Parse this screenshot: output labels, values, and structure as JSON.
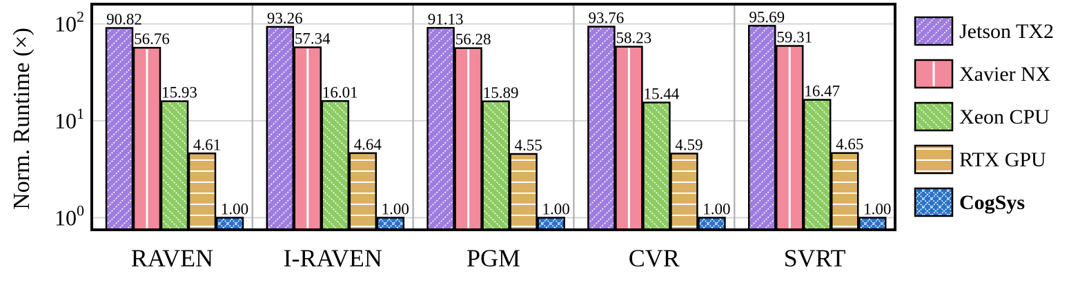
{
  "chart_data": {
    "type": "bar",
    "scale": "log",
    "xlabel": "",
    "ylabel": "Norm. Runtime (×)",
    "ylim": [
      0.75,
      160
    ],
    "y_ticks": [
      {
        "value": 1,
        "base": "10",
        "exp": "0"
      },
      {
        "value": 10,
        "base": "10",
        "exp": "1"
      },
      {
        "value": 100,
        "base": "10",
        "exp": "2"
      }
    ],
    "grid": true,
    "legend_position": "right",
    "categories": [
      "RAVEN",
      "I-RAVEN",
      "PGM",
      "CVR",
      "SVRT"
    ],
    "series": [
      {
        "name": "Jetson TX2",
        "color": "#9f7de0",
        "pattern": "diagonal-dots",
        "bold": false,
        "values": [
          90.82,
          93.26,
          91.13,
          93.76,
          95.69
        ]
      },
      {
        "name": "Xavier NX",
        "color": "#f28a9c",
        "pattern": "vertical-line",
        "bold": false,
        "values": [
          56.76,
          57.34,
          56.28,
          58.23,
          59.31
        ]
      },
      {
        "name": "Xeon CPU",
        "color": "#8ccc63",
        "pattern": "back-diagonal-dots",
        "bold": false,
        "values": [
          15.93,
          16.01,
          15.89,
          15.44,
          16.47
        ]
      },
      {
        "name": "RTX GPU",
        "color": "#dcb063",
        "pattern": "horizontal-lines",
        "bold": false,
        "values": [
          4.61,
          4.64,
          4.55,
          4.59,
          4.65
        ]
      },
      {
        "name": "CogSys",
        "color": "#2b73c8",
        "pattern": "diamond-grid",
        "bold": true,
        "values": [
          1.0,
          1.0,
          1.0,
          1.0,
          1.0
        ]
      }
    ],
    "value_labels": [
      [
        "90.82",
        "56.76",
        "15.93",
        "4.61",
        "1.00"
      ],
      [
        "93.26",
        "57.34",
        "16.01",
        "4.64",
        "1.00"
      ],
      [
        "91.13",
        "56.28",
        "15.89",
        "4.55",
        "1.00"
      ],
      [
        "93.76",
        "58.23",
        "15.44",
        "4.59",
        "1.00"
      ],
      [
        "95.69",
        "59.31",
        "16.47",
        "4.65",
        "1.00"
      ]
    ]
  }
}
